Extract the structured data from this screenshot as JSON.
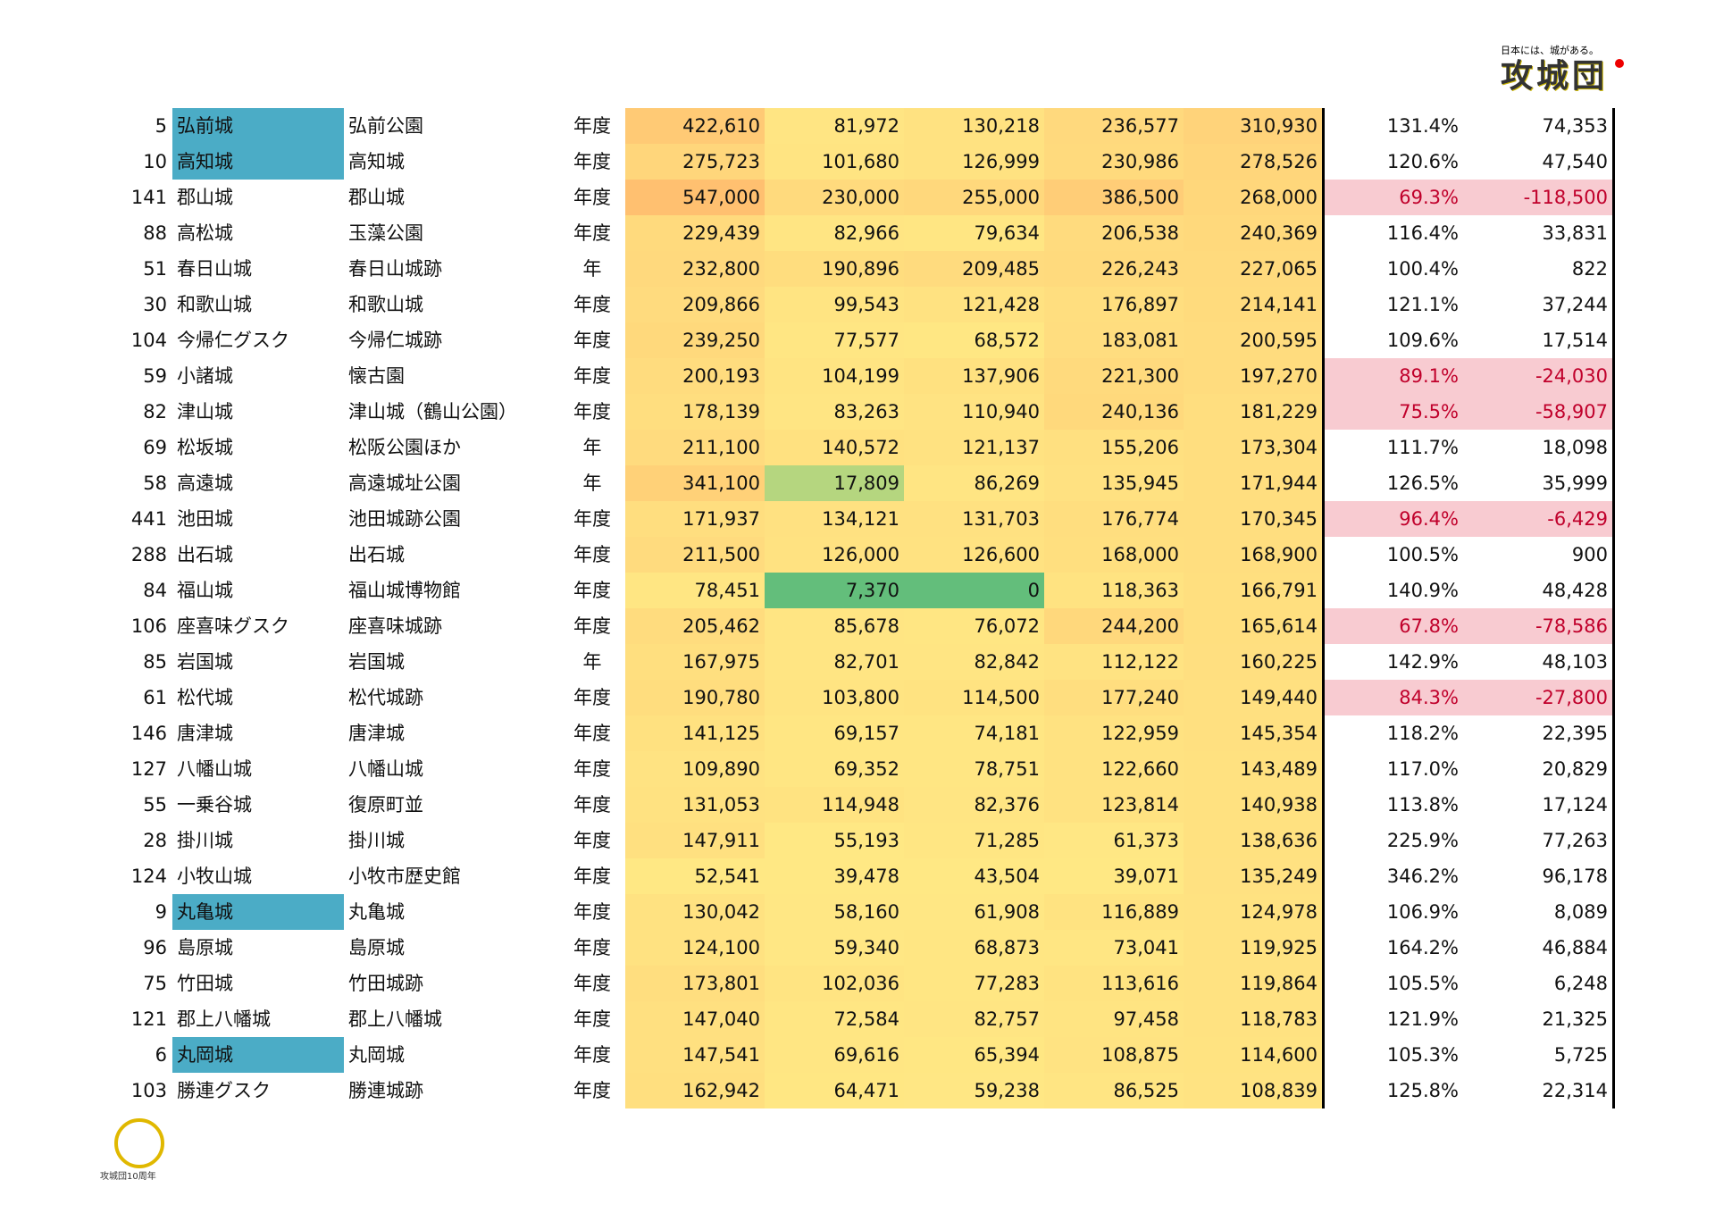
{
  "header": {
    "tagline": "日本には、城がある。",
    "logo": "攻城団"
  },
  "footer": {
    "logo": "攻城団10周年"
  },
  "table": {
    "rows": [
      {
        "cells": [
          "5",
          "弘前城",
          "弘前公園",
          "年度",
          "422,610",
          "81,972",
          "130,218",
          "236,577",
          "310,930",
          "131.4%",
          "74,353"
        ],
        "highlight": true
      },
      {
        "cells": [
          "10",
          "高知城",
          "高知城",
          "年度",
          "275,723",
          "101,680",
          "126,999",
          "230,986",
          "278,526",
          "120.6%",
          "47,540"
        ],
        "highlight": true
      },
      {
        "cells": [
          "141",
          "郡山城",
          "郡山城",
          "年度",
          "547,000",
          "230,000",
          "255,000",
          "386,500",
          "268,000",
          "69.3%",
          "-118,500"
        ]
      },
      {
        "cells": [
          "88",
          "高松城",
          "玉藻公園",
          "年度",
          "229,439",
          "82,966",
          "79,634",
          "206,538",
          "240,369",
          "116.4%",
          "33,831"
        ]
      },
      {
        "cells": [
          "51",
          "春日山城",
          "春日山城跡",
          "年",
          "232,800",
          "190,896",
          "209,485",
          "226,243",
          "227,065",
          "100.4%",
          "822"
        ]
      },
      {
        "cells": [
          "30",
          "和歌山城",
          "和歌山城",
          "年度",
          "209,866",
          "99,543",
          "121,428",
          "176,897",
          "214,141",
          "121.1%",
          "37,244"
        ]
      },
      {
        "cells": [
          "104",
          "今帰仁グスク",
          "今帰仁城跡",
          "年度",
          "239,250",
          "77,577",
          "68,572",
          "183,081",
          "200,595",
          "109.6%",
          "17,514"
        ]
      },
      {
        "cells": [
          "59",
          "小諸城",
          "懐古園",
          "年度",
          "200,193",
          "104,199",
          "137,906",
          "221,300",
          "197,270",
          "89.1%",
          "-24,030"
        ]
      },
      {
        "cells": [
          "82",
          "津山城",
          "津山城（鶴山公園）",
          "年度",
          "178,139",
          "83,263",
          "110,940",
          "240,136",
          "181,229",
          "75.5%",
          "-58,907"
        ]
      },
      {
        "cells": [
          "69",
          "松坂城",
          "松阪公園ほか",
          "年",
          "211,100",
          "140,572",
          "121,137",
          "155,206",
          "173,304",
          "111.7%",
          "18,098"
        ]
      },
      {
        "cells": [
          "58",
          "高遠城",
          "高遠城址公園",
          "年",
          "341,100",
          "17,809",
          "86,269",
          "135,945",
          "171,944",
          "126.5%",
          "35,999"
        ]
      },
      {
        "cells": [
          "441",
          "池田城",
          "池田城跡公園",
          "年度",
          "171,937",
          "134,121",
          "131,703",
          "176,774",
          "170,345",
          "96.4%",
          "-6,429"
        ]
      },
      {
        "cells": [
          "288",
          "出石城",
          "出石城",
          "年度",
          "211,500",
          "126,000",
          "126,600",
          "168,000",
          "168,900",
          "100.5%",
          "900"
        ]
      },
      {
        "cells": [
          "84",
          "福山城",
          "福山城博物館",
          "年度",
          "78,451",
          "7,370",
          "0",
          "118,363",
          "166,791",
          "140.9%",
          "48,428"
        ]
      },
      {
        "cells": [
          "106",
          "座喜味グスク",
          "座喜味城跡",
          "年度",
          "205,462",
          "85,678",
          "76,072",
          "244,200",
          "165,614",
          "67.8%",
          "-78,586"
        ]
      },
      {
        "cells": [
          "85",
          "岩国城",
          "岩国城",
          "年",
          "167,975",
          "82,701",
          "82,842",
          "112,122",
          "160,225",
          "142.9%",
          "48,103"
        ]
      },
      {
        "cells": [
          "61",
          "松代城",
          "松代城跡",
          "年度",
          "190,780",
          "103,800",
          "114,500",
          "177,240",
          "149,440",
          "84.3%",
          "-27,800"
        ]
      },
      {
        "cells": [
          "146",
          "唐津城",
          "唐津城",
          "年度",
          "141,125",
          "69,157",
          "74,181",
          "122,959",
          "145,354",
          "118.2%",
          "22,395"
        ]
      },
      {
        "cells": [
          "127",
          "八幡山城",
          "八幡山城",
          "年度",
          "109,890",
          "69,352",
          "78,751",
          "122,660",
          "143,489",
          "117.0%",
          "20,829"
        ]
      },
      {
        "cells": [
          "55",
          "一乗谷城",
          "復原町並",
          "年度",
          "131,053",
          "114,948",
          "82,376",
          "123,814",
          "140,938",
          "113.8%",
          "17,124"
        ]
      },
      {
        "cells": [
          "28",
          "掛川城",
          "掛川城",
          "年度",
          "147,911",
          "55,193",
          "71,285",
          "61,373",
          "138,636",
          "225.9%",
          "77,263"
        ]
      },
      {
        "cells": [
          "124",
          "小牧山城",
          "小牧市歴史館",
          "年度",
          "52,541",
          "39,478",
          "43,504",
          "39,071",
          "135,249",
          "346.2%",
          "96,178"
        ]
      },
      {
        "cells": [
          "9",
          "丸亀城",
          "丸亀城",
          "年度",
          "130,042",
          "58,160",
          "61,908",
          "116,889",
          "124,978",
          "106.9%",
          "8,089"
        ],
        "highlight": true
      },
      {
        "cells": [
          "96",
          "島原城",
          "島原城",
          "年度",
          "124,100",
          "59,340",
          "68,873",
          "73,041",
          "119,925",
          "164.2%",
          "46,884"
        ]
      },
      {
        "cells": [
          "75",
          "竹田城",
          "竹田城跡",
          "年度",
          "173,801",
          "102,036",
          "77,283",
          "113,616",
          "119,864",
          "105.5%",
          "6,248"
        ]
      },
      {
        "cells": [
          "121",
          "郡上八幡城",
          "郡上八幡城",
          "年度",
          "147,040",
          "72,584",
          "82,757",
          "97,458",
          "118,783",
          "121.9%",
          "21,325"
        ]
      },
      {
        "cells": [
          "6",
          "丸岡城",
          "丸岡城",
          "年度",
          "147,541",
          "69,616",
          "65,394",
          "108,875",
          "114,600",
          "105.3%",
          "5,725"
        ],
        "highlight": true
      },
      {
        "cells": [
          "103",
          "勝連グスク",
          "勝連城跡",
          "年度",
          "162,942",
          "64,471",
          "59,238",
          "86,525",
          "108,839",
          "125.8%",
          "22,314"
        ]
      }
    ]
  }
}
